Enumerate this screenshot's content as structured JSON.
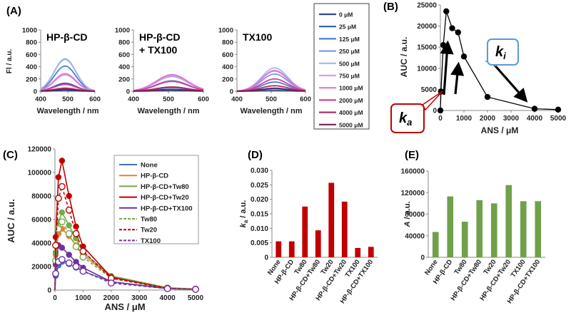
{
  "panels": {
    "A": {
      "label": "(A)"
    },
    "B": {
      "label": "(B)",
      "ka_letter": "k",
      "ka_sub": "a",
      "ki_letter": "k",
      "ki_sub": "i"
    },
    "C": {
      "label": "(C)"
    },
    "D": {
      "label": "(D)"
    },
    "E": {
      "label": "(E)"
    }
  },
  "colors": {
    "blue": "#4472C4",
    "orange": "#ED7D31",
    "green": "#70AD47",
    "red": "#C00000",
    "purple": "#7030A0",
    "barRed": "#C00000",
    "barGreen": "#70A049",
    "legendBorder": "#404040",
    "calloutRed": "#C00000",
    "calloutBlue": "#5B9BD5"
  },
  "chart_data": [
    {
      "id": "A1",
      "type": "line",
      "title": "HP-β-CD",
      "xlabel": "Wavelength / nm",
      "ylabel": "Fl / a.u.",
      "xlim": [
        400,
        600
      ],
      "ylim": [
        0,
        1000
      ],
      "xticks": [
        "400",
        "500",
        "600"
      ],
      "yticks": [
        "0",
        "200",
        "400",
        "600",
        "800",
        "1000"
      ],
      "peak_x": 490,
      "width": 40,
      "series_peaks": [
        10,
        130,
        410,
        520,
        530,
        290,
        270,
        110,
        50,
        30
      ]
    },
    {
      "id": "A2",
      "type": "line",
      "title": "HP-β-CD",
      "title2": "+ TX100",
      "xlabel": "Wavelength / nm",
      "ylabel": "",
      "xlim": [
        400,
        600
      ],
      "ylim": [
        0,
        1000
      ],
      "xticks": [
        "400",
        "500",
        "600"
      ],
      "yticks": [
        "0",
        "200",
        "400",
        "600",
        "800",
        "1000"
      ],
      "peak_x": 510,
      "width": 45,
      "series_peaks": [
        10,
        60,
        170,
        240,
        260,
        250,
        270,
        160,
        70,
        30
      ]
    },
    {
      "id": "A3",
      "type": "line",
      "title": "TX100",
      "xlabel": "Wavelength / nm",
      "ylabel": "",
      "xlim": [
        400,
        600
      ],
      "ylim": [
        0,
        1000
      ],
      "xticks": [
        "400",
        "500",
        "600"
      ],
      "yticks": [
        "0",
        "200",
        "400",
        "600",
        "800",
        "1000"
      ],
      "peak_x": 510,
      "width": 38,
      "series_peaks": [
        10,
        50,
        150,
        280,
        380,
        340,
        330,
        200,
        90,
        40
      ]
    },
    {
      "id": "A_legend",
      "type": "legend",
      "entries": [
        "0 μM",
        "25 μM",
        "125 μM",
        "250 μM",
        "500 μM",
        "750 μM",
        "1000 μM",
        "2000 μM",
        "4000 μM",
        "5000 μM"
      ],
      "colors": [
        "#2F4B8C",
        "#2E5AAC",
        "#4A7FD3",
        "#7A9FE0",
        "#A5B8EC",
        "#D0A0E8",
        "#E870D8",
        "#D8409E",
        "#A8306A",
        "#702050"
      ]
    },
    {
      "id": "B",
      "type": "line",
      "xlabel": "ANS / μM",
      "ylabel": "AUC / a.u.",
      "xlim": [
        0,
        5000
      ],
      "ylim": [
        0,
        25000
      ],
      "xticks": [
        "0",
        "1000",
        "2000",
        "3000",
        "4000",
        "5000"
      ],
      "yticks": [
        "0",
        "5000",
        "10000",
        "15000",
        "20000",
        "25000"
      ],
      "x": [
        0,
        25,
        125,
        250,
        500,
        750,
        1000,
        2000,
        4000,
        5000
      ],
      "y": [
        0,
        4500,
        15500,
        23500,
        19500,
        18500,
        12800,
        3200,
        400,
        200
      ]
    },
    {
      "id": "C",
      "type": "scatter",
      "xlabel": "ANS / μM",
      "ylabel": "AUC / a.u.",
      "xlim": [
        0,
        5000
      ],
      "ylim": [
        0,
        120000
      ],
      "xticks": [
        "0",
        "1000",
        "2000",
        "3000",
        "4000",
        "5000"
      ],
      "yticks": [
        "0",
        "20000",
        "40000",
        "60000",
        "80000",
        "100000",
        "120000"
      ],
      "x": [
        25,
        125,
        250,
        500,
        750,
        1000,
        2000,
        4000,
        5000
      ],
      "legend": [
        "None",
        "HP-β-CD",
        "HP-β-CD+Tw80",
        "HP-β-CD+Tw20",
        "HP-β-CD+TX100",
        "Tw80",
        "Tw20",
        "TX100"
      ],
      "series": [
        {
          "name": "None",
          "color": "#4472C4",
          "dashed": false,
          "filled": true,
          "values": [
            12000,
            21000,
            24000,
            22000,
            19000,
            16000,
            7000,
            1500,
            800
          ]
        },
        {
          "name": "HP-β-CD",
          "color": "#ED7D31",
          "dashed": false,
          "filled": true,
          "values": [
            30000,
            48000,
            52000,
            46000,
            38000,
            30000,
            11000,
            1800,
            900
          ]
        },
        {
          "name": "HP-β-CD+Tw80",
          "color": "#70AD47",
          "dashed": false,
          "filled": true,
          "values": [
            32000,
            58000,
            66000,
            55000,
            44000,
            32000,
            12000,
            2000,
            900
          ]
        },
        {
          "name": "HP-β-CD+Tw20",
          "color": "#C00000",
          "dashed": false,
          "filled": true,
          "values": [
            45000,
            96000,
            110000,
            80000,
            54000,
            37000,
            11000,
            1500,
            700
          ]
        },
        {
          "name": "HP-β-CD+TX100",
          "color": "#7030A0",
          "dashed": false,
          "filled": true,
          "values": [
            22000,
            38000,
            36000,
            30000,
            24000,
            19000,
            7000,
            1200,
            600
          ]
        },
        {
          "name": "Tw80",
          "color": "#70AD47",
          "dashed": true,
          "filled": false,
          "values": [
            25000,
            52000,
            58000,
            48000,
            37000,
            28000,
            10000,
            1600,
            800
          ]
        },
        {
          "name": "Tw20",
          "color": "#C00000",
          "dashed": true,
          "filled": false,
          "values": [
            38000,
            78000,
            88000,
            68000,
            48000,
            33000,
            10000,
            1500,
            700
          ]
        },
        {
          "name": "TX100",
          "color": "#7030A0",
          "dashed": true,
          "filled": false,
          "values": [
            14000,
            24000,
            26000,
            23000,
            20000,
            16000,
            6000,
            1200,
            600
          ]
        }
      ]
    },
    {
      "id": "D",
      "type": "bar",
      "ylabel": "ka / a.u.",
      "ylabel_italic": "k",
      "ylabel_sub": "a",
      "ylabel_rest": " / a.u.",
      "ylim": [
        0,
        0.03
      ],
      "yticks": [
        "0",
        "0.005",
        "0.010",
        "0.015",
        "0.020",
        "0.025",
        "0.030"
      ],
      "categories": [
        "None",
        "HP-β-CD",
        "Tw80",
        "HP-β-CD+Tw80",
        "Tw20",
        "HP-β-CD+Tw20",
        "TX100",
        "HP-β-CD+TX100"
      ],
      "values": [
        0.0055,
        0.0055,
        0.0175,
        0.0093,
        0.0257,
        0.0192,
        0.0032,
        0.0036
      ]
    },
    {
      "id": "E",
      "type": "bar",
      "ylabel": "A / a.u.",
      "ylabel_italic": "A",
      "ylabel_rest": " / a.u.",
      "ylim": [
        0,
        160000
      ],
      "yticks": [
        "0",
        "40000",
        "80000",
        "120000",
        "160000"
      ],
      "categories": [
        "None",
        "HP-β-CD",
        "Tw80",
        "HP-β-CD+Tw80",
        "Tw20",
        "HP-β-CD+Tw20",
        "TX100",
        "HP-β-CD+TX100"
      ],
      "values": [
        47000,
        113000,
        66000,
        106000,
        100000,
        134000,
        104000,
        104000
      ]
    }
  ]
}
